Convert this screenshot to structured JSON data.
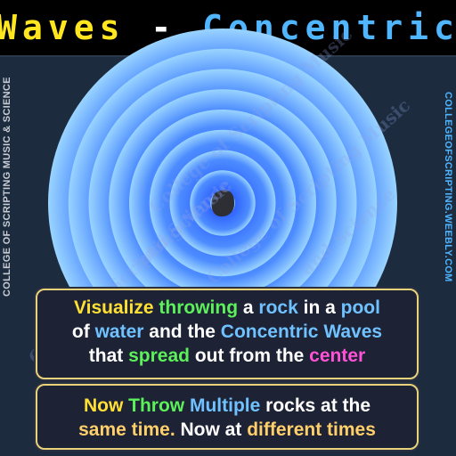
{
  "title": {
    "left": "Waves",
    "sep": " - ",
    "right": "Concentric"
  },
  "side_left": "COLLEGE OF SCRIPTING MUSIC & SCIENCE",
  "side_right": "COLLEGEOFSCRIPTING.WEEBLY.COM",
  "watermarks": [
    "College of Scripting Music",
    "and Science"
  ],
  "panel1": {
    "w1": "Visualize",
    "w2": "throwing",
    "w3": "a",
    "w4": "rock",
    "w5": "in a",
    "w6": "pool",
    "w7": "of",
    "w8": "water",
    "w9": "and the",
    "w10": "Concentric Waves",
    "w11": "that",
    "w12": "spread",
    "w13": "out from the",
    "w14": "center"
  },
  "panel2": {
    "w1": "Now",
    "w2": "Throw",
    "w3": "Multiple",
    "w4": "rocks at the",
    "w5": "same time.",
    "w6": "Now at",
    "w7": "different times"
  },
  "colors": {
    "title_left": "#ffe61e",
    "title_right": "#4fb6ff",
    "wave_light": "#9ad4ff",
    "wave_dark": "#1540ff",
    "rock": "#2e2f34"
  },
  "ripple_count": 9
}
